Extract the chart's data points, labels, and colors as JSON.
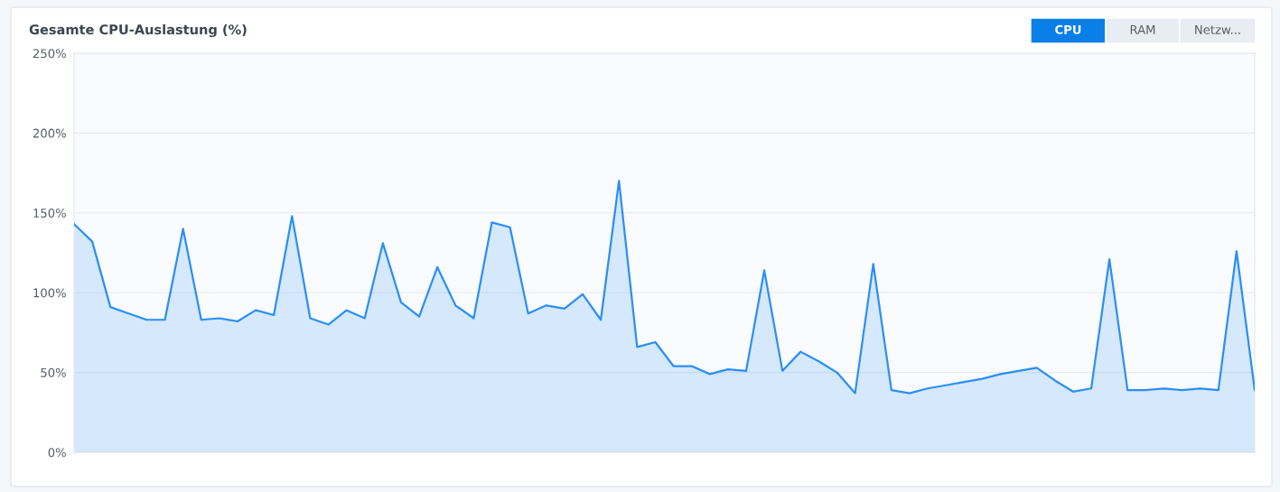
{
  "chart_data": {
    "type": "area",
    "title": "Gesamte CPU-Auslastung (%)",
    "annotations": [
      "CPU",
      "RAM",
      "Netzw..."
    ],
    "categories": [
      null,
      null,
      null,
      null,
      null,
      null,
      null,
      null,
      null,
      null,
      null,
      null,
      null,
      null,
      null,
      null,
      null,
      null,
      null,
      null,
      null,
      null,
      null,
      null,
      null,
      null,
      null,
      null,
      null,
      null,
      null,
      null,
      null,
      null,
      null,
      null,
      null,
      null,
      null,
      null,
      null,
      null,
      null,
      null,
      null,
      null,
      null,
      null,
      null,
      null,
      null,
      null,
      null,
      null,
      null,
      null,
      null,
      null,
      null,
      null,
      null,
      null,
      null,
      null,
      null,
      null
    ],
    "series": [
      {
        "color": "#2b8ff6",
        "values": [
          143,
          132,
          91,
          87,
          83,
          83,
          140,
          83,
          84,
          82,
          89,
          86,
          148,
          84,
          80,
          89,
          84,
          131,
          94,
          85,
          116,
          92,
          84,
          144,
          141,
          87,
          92,
          90,
          99,
          83,
          170,
          66,
          69,
          54,
          54,
          49,
          52,
          51,
          114,
          51,
          63,
          57,
          50,
          37,
          118,
          39,
          37,
          40,
          42,
          44,
          46,
          49,
          51,
          53,
          45,
          38,
          40,
          121,
          39,
          39,
          40,
          39,
          40,
          39,
          126,
          39
        ]
      }
    ],
    "ylim": [
      0,
      250
    ],
    "yticks": [
      {
        "value": 0,
        "label": "0%"
      },
      {
        "value": 50,
        "label": "50%"
      },
      {
        "value": 100,
        "label": "100%"
      },
      {
        "value": 150,
        "label": "150%"
      },
      {
        "value": 200,
        "label": "200%"
      },
      {
        "value": 250,
        "label": "250%"
      }
    ],
    "tick_labels": "y",
    "grid": "y"
  }
}
